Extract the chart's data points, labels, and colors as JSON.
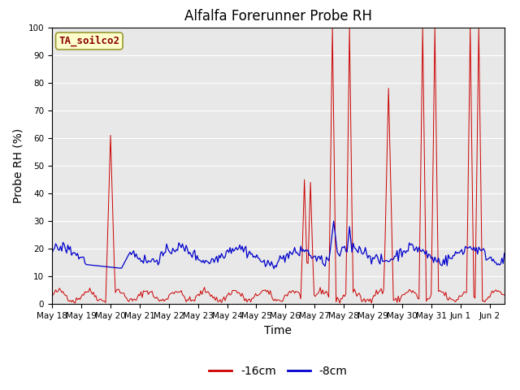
{
  "title": "Alfalfa Forerunner Probe RH",
  "xlabel": "Time",
  "ylabel": "Probe RH (%)",
  "ylim": [
    0,
    100
  ],
  "xtick_labels": [
    "May 18",
    "May 19",
    "May 20",
    "May 21",
    "May 22",
    "May 23",
    "May 24",
    "May 25",
    "May 26",
    "May 27",
    "May 28",
    "May 29",
    "May 30",
    "May 31",
    "Jun 1",
    "Jun 2"
  ],
  "color_red": "#cc0000",
  "color_blue": "#0000cc",
  "legend_label_red": "-16cm",
  "legend_label_blue": "-8cm",
  "annotation_label": "TA_soilco2",
  "annotation_color": "#880000",
  "annotation_bg": "#ffffcc",
  "annotation_border": "#999933",
  "background_color": "#e8e8e8",
  "title_fontsize": 12,
  "axis_fontsize": 10,
  "tick_fontsize": 7.5,
  "legend_fontsize": 10
}
